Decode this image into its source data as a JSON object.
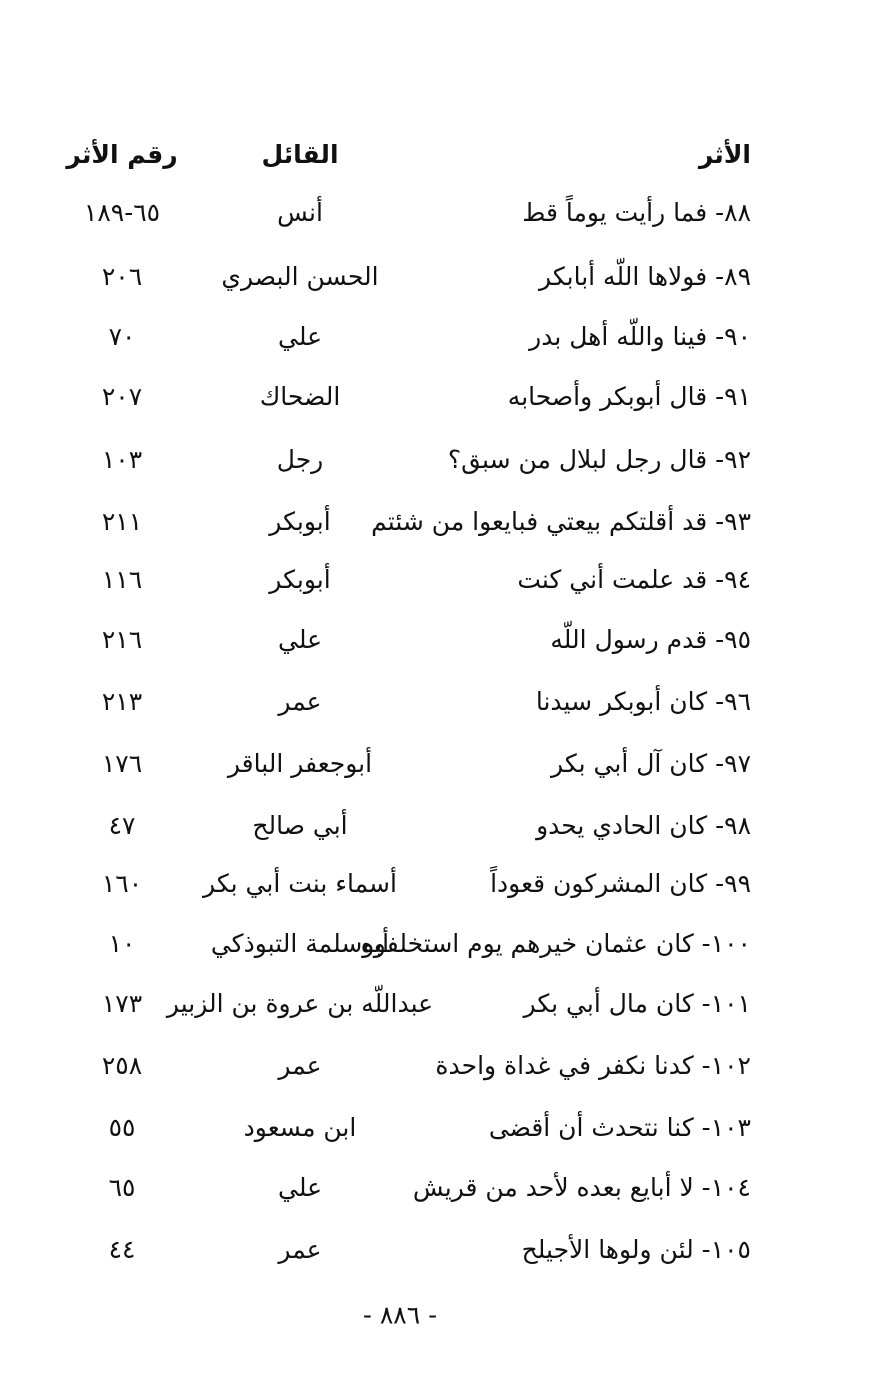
{
  "header": {
    "athar": "الأثر",
    "qail": "القائل",
    "number": "رقم الأثر"
  },
  "rows": [
    {
      "athar": "٨٨- فما رأيت يوماً قط",
      "qail": "أنس",
      "number": "٦٥-١٨٩"
    },
    {
      "athar": "٨٩- فولاها اللّه أبابكر",
      "qail": "الحسن البصري",
      "number": "٢٠٦"
    },
    {
      "athar": "٩٠- فينا واللّه أهل بدر",
      "qail": "علي",
      "number": "٧٠"
    },
    {
      "athar": "٩١- قال أبوبكر وأصحابه",
      "qail": "الضحاك",
      "number": "٢٠٧"
    },
    {
      "athar": "٩٢- قال رجل لبلال من سبق؟",
      "qail": "رجل",
      "number": "١٠٣"
    },
    {
      "athar": "٩٣- قد أقلتكم بيعتي فبايعوا من شئتم",
      "qail": "أبوبكر",
      "number": "٢١١"
    },
    {
      "athar": "٩٤- قد علمت أني كنت",
      "qail": "أبوبكر",
      "number": "١١٦"
    },
    {
      "athar": "٩٥- قدم رسول اللّه",
      "qail": "علي",
      "number": "٢١٦"
    },
    {
      "athar": "٩٦- كان أبوبكر سيدنا",
      "qail": "عمر",
      "number": "٢١٣"
    },
    {
      "athar": "٩٧- كان آل أبي بكر",
      "qail": "أبوجعفر الباقر",
      "number": "١٧٦"
    },
    {
      "athar": "٩٨- كان الحادي يحدو",
      "qail": "أبي صالح",
      "number": "٤٧"
    },
    {
      "athar": "٩٩- كان المشركون قعوداً",
      "qail": "أسماء بنت أبي بكر",
      "number": "١٦٠"
    },
    {
      "athar": "١٠٠- كان عثمان خيرهم يوم استخلفوه",
      "qail": "أبوسلمة التبوذكي",
      "number": "١٠"
    },
    {
      "athar": "١٠١- كان مال أبي بكر",
      "qail": "عبداللّه بن عروة بن الزبير",
      "number": "١٧٣"
    },
    {
      "athar": "١٠٢- كدنا نكفر في غداة واحدة",
      "qail": "عمر",
      "number": "٢٥٨"
    },
    {
      "athar": "١٠٣- كنا نتحدث أن أقضى",
      "qail": "ابن مسعود",
      "number": "٥٥"
    },
    {
      "athar": "١٠٤- لا أبايع بعده لأحد من قريش",
      "qail": "علي",
      "number": "٦٥"
    },
    {
      "athar": "١٠٥- لئن ولوها الأجيلح",
      "qail": "عمر",
      "number": "٤٤"
    }
  ],
  "page_number": "- ٨٨٦ -"
}
